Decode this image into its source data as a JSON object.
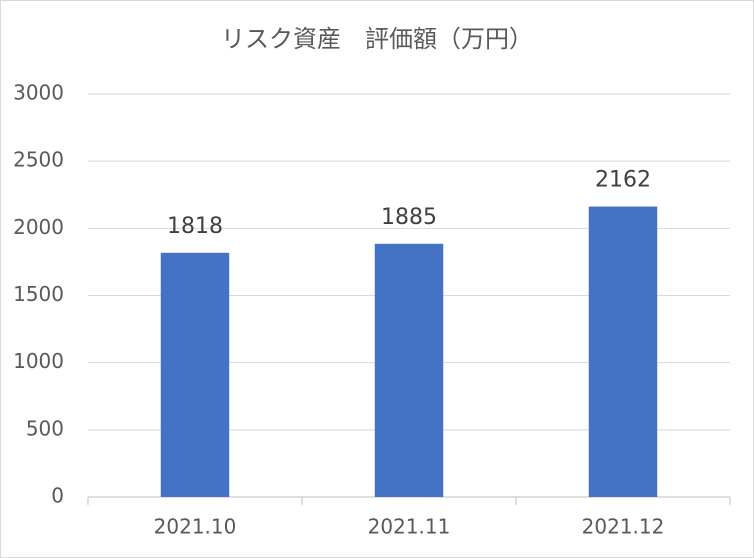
{
  "chart_data": {
    "type": "bar",
    "title": "リスク資産　評価額（万円）",
    "categories": [
      "2021.10",
      "2021.11",
      "2021.12"
    ],
    "values": [
      1818,
      1885,
      2162
    ],
    "color": "#4472c4",
    "ylim": [
      0,
      3000
    ],
    "yticks": [
      0,
      500,
      1000,
      1500,
      2000,
      2500,
      3000
    ],
    "grid": true
  }
}
